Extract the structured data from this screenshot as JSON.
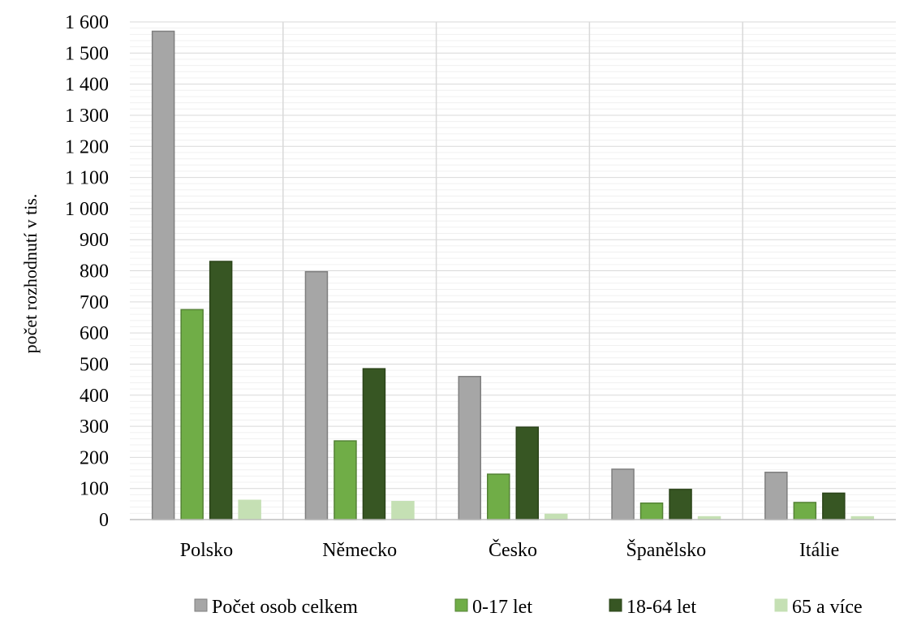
{
  "chart_data": {
    "type": "bar",
    "title": "",
    "xlabel": "",
    "ylabel": "počet rozhodnutí v tis.",
    "ylim": [
      0,
      1600
    ],
    "y_ticks": [
      {
        "value": 0,
        "label": "0"
      },
      {
        "value": 100,
        "label": "100"
      },
      {
        "value": 200,
        "label": "200"
      },
      {
        "value": 300,
        "label": "300"
      },
      {
        "value": 400,
        "label": "400"
      },
      {
        "value": 500,
        "label": "500"
      },
      {
        "value": 600,
        "label": "600"
      },
      {
        "value": 700,
        "label": "700"
      },
      {
        "value": 800,
        "label": "800"
      },
      {
        "value": 900,
        "label": "900"
      },
      {
        "value": 1000,
        "label": "1 000"
      },
      {
        "value": 1100,
        "label": "1 100"
      },
      {
        "value": 1200,
        "label": "1 200"
      },
      {
        "value": 1300,
        "label": "1 300"
      },
      {
        "value": 1400,
        "label": "1 400"
      },
      {
        "value": 1500,
        "label": "1 500"
      },
      {
        "value": 1600,
        "label": "1 600"
      }
    ],
    "categories": [
      "Polsko",
      "Německo",
      "Česko",
      "Španělsko",
      "Itálie"
    ],
    "series": [
      {
        "name": "Počet osob celkem",
        "color": "#a6a6a6",
        "stroke": "#7f7f7f",
        "values": [
          1570,
          797,
          460,
          162,
          152
        ]
      },
      {
        "name": "0-17 let",
        "color": "#70ad47",
        "stroke": "#548235",
        "values": [
          675,
          253,
          146,
          53,
          55
        ]
      },
      {
        "name": "18-64 let",
        "color": "#375623",
        "stroke": "#2b4419",
        "values": [
          830,
          485,
          297,
          97,
          85
        ]
      },
      {
        "name": "65 a více",
        "color": "#c5e0b4",
        "stroke": "#c5e0b4",
        "values": [
          62,
          58,
          17,
          9,
          9
        ]
      }
    ],
    "grid": true,
    "legend_position": "bottom"
  }
}
